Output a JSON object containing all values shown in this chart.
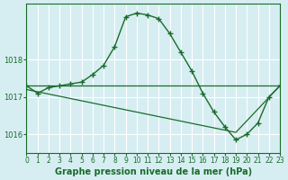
{
  "title": "Graphe pression niveau de la mer (hPa)",
  "bg_color": "#d6eef2",
  "grid_color": "#ffffff",
  "line_color": "#1a6b2a",
  "xlabel_fontsize": 7,
  "ylabel_fontsize": 7,
  "title_fontsize": 7,
  "xlim": [
    0,
    23
  ],
  "ylim": [
    1015.5,
    1019.5
  ],
  "yticks": [
    1016,
    1017,
    1018
  ],
  "xticks": [
    0,
    1,
    2,
    3,
    4,
    5,
    6,
    7,
    8,
    9,
    10,
    11,
    12,
    13,
    14,
    15,
    16,
    17,
    18,
    19,
    20,
    21,
    22,
    23
  ],
  "curve1_x": [
    0,
    1,
    2,
    3,
    4,
    5,
    6,
    7,
    8,
    9,
    10,
    11,
    12,
    13,
    14,
    15,
    16,
    17,
    18,
    19,
    20,
    21,
    22,
    23
  ],
  "curve1_y": [
    1017.3,
    1017.1,
    1017.25,
    1017.3,
    1017.35,
    1017.4,
    1017.6,
    1017.85,
    1018.35,
    1019.15,
    1019.25,
    1019.2,
    1019.1,
    1018.7,
    1018.2,
    1017.7,
    1017.1,
    1016.6,
    1016.2,
    1015.85,
    1016.0,
    1016.3,
    1017.0,
    1017.3
  ],
  "curve2_x": [
    0,
    23
  ],
  "curve2_y": [
    1017.3,
    1017.3
  ],
  "curve3_x": [
    0,
    19,
    23
  ],
  "curve3_y": [
    1017.2,
    1016.05,
    1017.3
  ]
}
